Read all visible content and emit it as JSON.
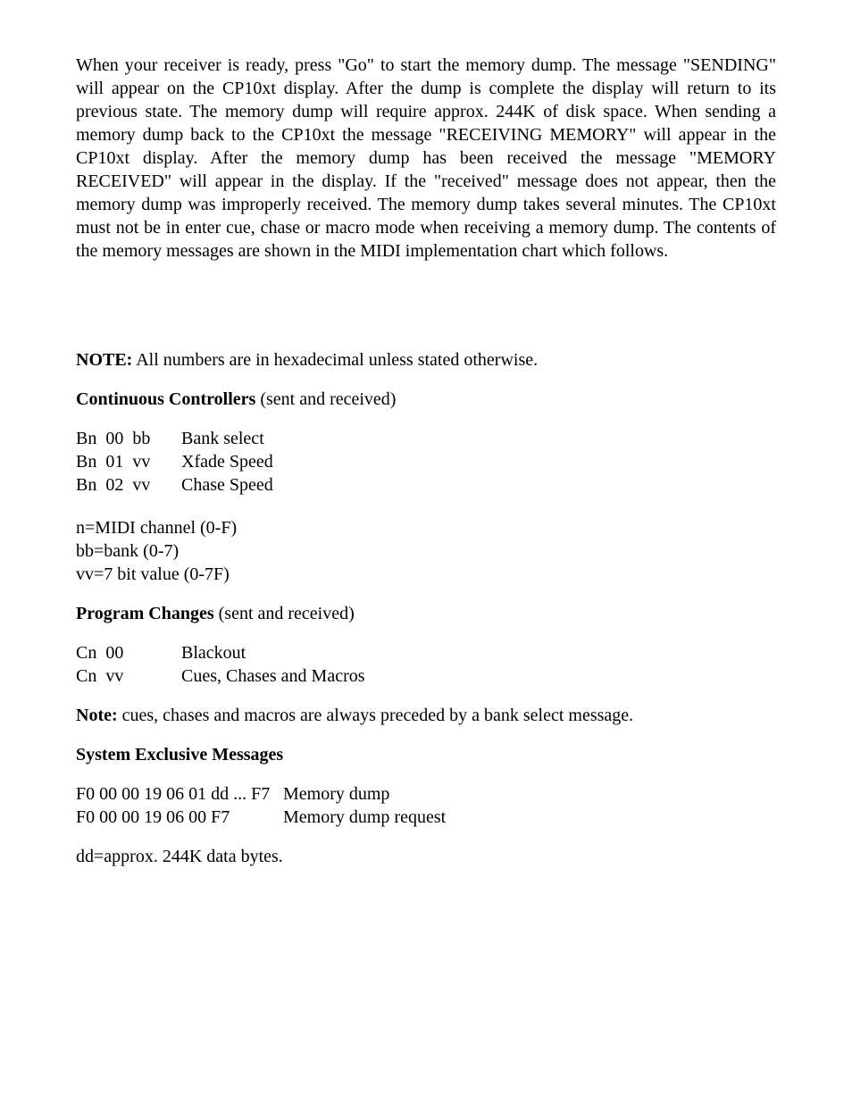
{
  "intro_paragraph": "When your receiver is ready, press \"Go\" to start the memory dump. The message \"SENDING\" will appear on the CP10xt display. After the dump is complete the display will return to its previous state. The memory dump will require approx. 244K of disk space. When sending a memory dump back to the CP10xt the message \"RECEIVING MEMORY\" will appear in the CP10xt display. After the memory dump has been received the message \"MEMORY RECEIVED\" will appear in the display. If the \"received\" message does not appear, then the memory dump was improperly received. The memory dump takes several minutes. The CP10xt must not be in enter cue, chase or macro mode when receiving a memory dump. The contents of the memory messages are shown in the MIDI implementation chart which follows.",
  "note_label": "NOTE:",
  "note_text": " All numbers are in hexadecimal unless stated otherwise.",
  "cc_head_bold": "Continuous Controllers",
  "cc_head_rest": " (sent and received)",
  "cc_rows": [
    {
      "code": "Bn  00  bb",
      "desc": "Bank select"
    },
    {
      "code": "Bn  01  vv",
      "desc": "Xfade Speed"
    },
    {
      "code": "Bn  02  vv",
      "desc": "Chase Speed"
    }
  ],
  "cc_legend": [
    "n=MIDI channel (0-F)",
    "bb=bank (0-7)",
    "vv=7 bit value (0-7F)"
  ],
  "pc_head_bold": "Program Changes",
  "pc_head_rest": " (sent and received)",
  "pc_rows": [
    {
      "code": "Cn  00",
      "desc": "Blackout"
    },
    {
      "code": "Cn  vv",
      "desc": "Cues, Chases and Macros"
    }
  ],
  "pc_note_bold": "Note:",
  "pc_note_rest": " cues, chases and macros are always preceded by a bank select message.",
  "sysex_head": "System Exclusive Messages",
  "sysex_rows": [
    {
      "code": "F0 00 00 19 06 01 dd ... F7",
      "desc": "Memory dump"
    },
    {
      "code": "F0 00 00 19 06 00 F7",
      "desc": "Memory dump request"
    }
  ],
  "sysex_legend": "dd=approx. 244K data bytes."
}
